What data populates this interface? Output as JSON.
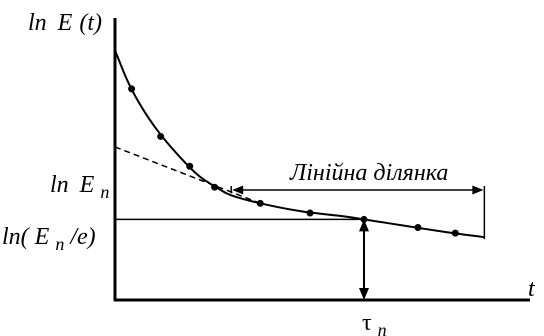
{
  "chart_data": {
    "type": "line",
    "title": "",
    "xlabel": "t",
    "ylabel": "ln E(t)",
    "axis_labels": {
      "y_prefix": "ln",
      "y_main": "E",
      "y_arg": "(t)",
      "x_main": "t"
    },
    "y_ticks": [
      {
        "key": "lnEn",
        "prefix": "ln",
        "main": "E",
        "sub": "n",
        "suffix": "",
        "value": 1.9
      },
      {
        "key": "lnEn_e",
        "prefix": "ln(",
        "main": "E",
        "sub": "n",
        "suffix": "/e)",
        "value": 1.0
      }
    ],
    "x_tick": {
      "symbol": "τ",
      "sub": "n",
      "value": 6.0
    },
    "annotation": {
      "text": "Лінійна ділянка",
      "x_start": 2.8,
      "x_end": 8.9
    },
    "curve": {
      "x": [
        0,
        0.3,
        0.6,
        1.0,
        1.5,
        2.0,
        2.5,
        2.8,
        3.5,
        4.5,
        5.5,
        6.0,
        7.0,
        8.0,
        8.9
      ],
      "y": [
        3.1,
        2.72,
        2.43,
        2.12,
        1.81,
        1.55,
        1.38,
        1.3,
        1.2,
        1.1,
        1.04,
        1.0,
        0.92,
        0.84,
        0.78
      ]
    },
    "points": {
      "x": [
        0.4,
        1.1,
        1.8,
        2.4,
        3.5,
        4.7,
        6.0,
        7.3,
        8.2
      ],
      "y": [
        2.62,
        2.03,
        1.66,
        1.4,
        1.2,
        1.08,
        1.0,
        0.9,
        0.83
      ]
    },
    "asymptote": {
      "x": [
        0,
        3.5
      ],
      "y": [
        1.9,
        1.2
      ]
    },
    "xlim": [
      0,
      10
    ],
    "ylim": [
      0,
      3.5
    ],
    "grid": false,
    "legend": "none"
  }
}
